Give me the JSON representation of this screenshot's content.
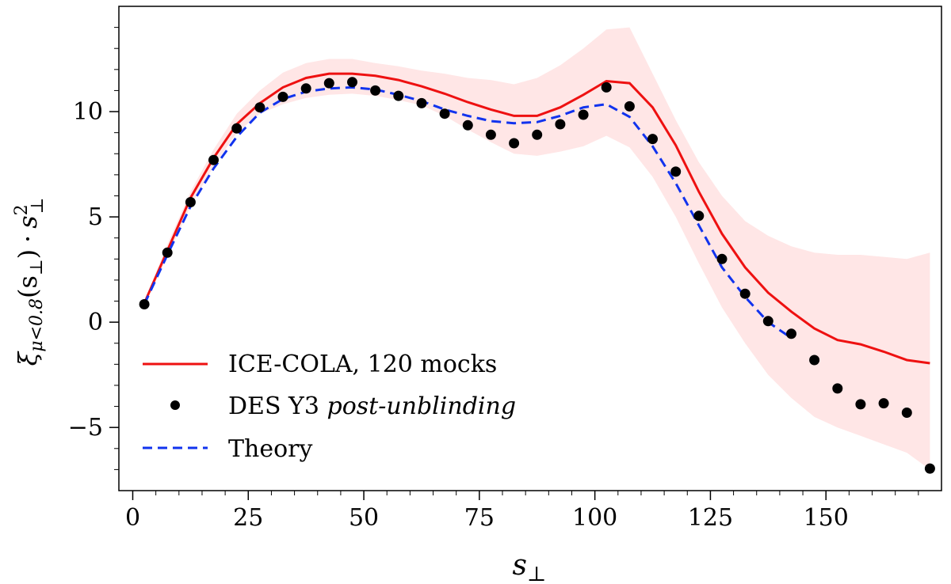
{
  "chart_data": {
    "type": "line",
    "title": "",
    "xlabel": "s⊥",
    "ylabel": "ξμ<0.8(s⊥) · s⊥²",
    "ylabel_parts": {
      "xi": "ξ",
      "sub": "μ<0.8",
      "args": "(s",
      "perp": "⊥",
      "close": ")",
      "dot": "·",
      "s": "s",
      "sq": "2"
    },
    "xlim": [
      -3,
      175
    ],
    "ylim": [
      -8,
      15
    ],
    "xticks": [
      0,
      25,
      50,
      75,
      100,
      125,
      150
    ],
    "xtick_labels": [
      "0",
      "25",
      "50",
      "75",
      "100",
      "125",
      "150"
    ],
    "yticks": [
      -5,
      0,
      5,
      10
    ],
    "ytick_labels": [
      "−5",
      "0",
      "5",
      "10"
    ],
    "grid": false,
    "legend_position": "lower-left",
    "series": [
      {
        "name": "ICE-COLA, 120 mocks",
        "kind": "line",
        "color": "#ee1111",
        "x": [
          2.5,
          7.5,
          12.5,
          17.5,
          22.5,
          27.5,
          32.5,
          37.5,
          42.5,
          47.5,
          52.5,
          57.5,
          62.5,
          67.5,
          72.5,
          77.5,
          82.5,
          87.5,
          92.5,
          97.5,
          102.5,
          107.5,
          112.5,
          117.5,
          122.5,
          127.5,
          132.5,
          137.5,
          142.5,
          147.5,
          152.5,
          157.5,
          162.5,
          167.5,
          172.5
        ],
        "y": [
          0.9,
          3.4,
          5.9,
          7.8,
          9.4,
          10.4,
          11.15,
          11.6,
          11.8,
          11.8,
          11.7,
          11.5,
          11.2,
          10.85,
          10.45,
          10.1,
          9.8,
          9.8,
          10.2,
          10.8,
          11.45,
          11.35,
          10.2,
          8.4,
          6.2,
          4.2,
          2.6,
          1.4,
          0.5,
          -0.3,
          -0.85,
          -1.05,
          -1.4,
          -1.8,
          -1.95
        ],
        "band_upper": [
          1.0,
          3.7,
          6.2,
          8.2,
          9.9,
          11.0,
          11.85,
          12.3,
          12.5,
          12.5,
          12.3,
          12.15,
          11.95,
          11.8,
          11.6,
          11.5,
          11.3,
          11.6,
          12.2,
          13.0,
          13.9,
          14.0,
          11.8,
          9.6,
          7.6,
          6.0,
          4.8,
          4.1,
          3.6,
          3.3,
          3.2,
          3.2,
          3.1,
          3.0,
          3.3
        ],
        "band_lower": [
          0.8,
          3.1,
          5.5,
          7.4,
          9.0,
          9.9,
          10.35,
          10.65,
          10.8,
          10.85,
          10.75,
          10.55,
          10.3,
          9.8,
          9.15,
          8.55,
          8.0,
          7.9,
          8.1,
          8.35,
          8.85,
          8.3,
          6.9,
          5.0,
          2.8,
          0.7,
          -1.0,
          -2.5,
          -3.6,
          -4.5,
          -5.0,
          -5.4,
          -5.8,
          -6.2,
          -7.0
        ],
        "band_color": "#ffe6e6"
      },
      {
        "name": "DES Y3",
        "name_italic": "post-unblinding",
        "kind": "scatter",
        "color": "#000000",
        "x": [
          2.5,
          7.5,
          12.5,
          17.5,
          22.5,
          27.5,
          32.5,
          37.5,
          42.5,
          47.5,
          52.5,
          57.5,
          62.5,
          67.5,
          72.5,
          77.5,
          82.5,
          87.5,
          92.5,
          97.5,
          102.5,
          107.5,
          112.5,
          117.5,
          122.5,
          127.5,
          132.5,
          137.5,
          142.5,
          147.5,
          152.5,
          157.5,
          162.5,
          167.5,
          172.5
        ],
        "y": [
          0.85,
          3.3,
          5.7,
          7.7,
          9.2,
          10.2,
          10.7,
          11.1,
          11.35,
          11.4,
          11.0,
          10.75,
          10.4,
          9.9,
          9.35,
          8.9,
          8.5,
          8.9,
          9.4,
          9.85,
          11.15,
          10.25,
          8.7,
          7.15,
          5.05,
          3.0,
          1.35,
          0.05,
          -0.55,
          -1.8,
          -3.15,
          -3.9,
          -3.85,
          -4.3,
          -6.95
        ]
      },
      {
        "name": "Theory",
        "kind": "dashed",
        "color": "#1133ee",
        "x": [
          2.5,
          7.5,
          12.5,
          17.5,
          22.5,
          27.5,
          32.5,
          37.5,
          42.5,
          47.5,
          52.5,
          57.5,
          62.5,
          67.5,
          72.5,
          77.5,
          82.5,
          87.5,
          92.5,
          97.5,
          102.5,
          107.5,
          112.5,
          117.5,
          122.5,
          127.5,
          132.5,
          137.5,
          142.5
        ],
        "y": [
          0.85,
          3.2,
          5.5,
          7.3,
          8.8,
          9.95,
          10.6,
          10.95,
          11.1,
          11.15,
          11.05,
          10.8,
          10.5,
          10.1,
          9.8,
          9.55,
          9.45,
          9.5,
          9.8,
          10.2,
          10.35,
          9.75,
          8.35,
          6.6,
          4.6,
          2.6,
          1.2,
          0.0,
          -0.75
        ]
      }
    ]
  }
}
